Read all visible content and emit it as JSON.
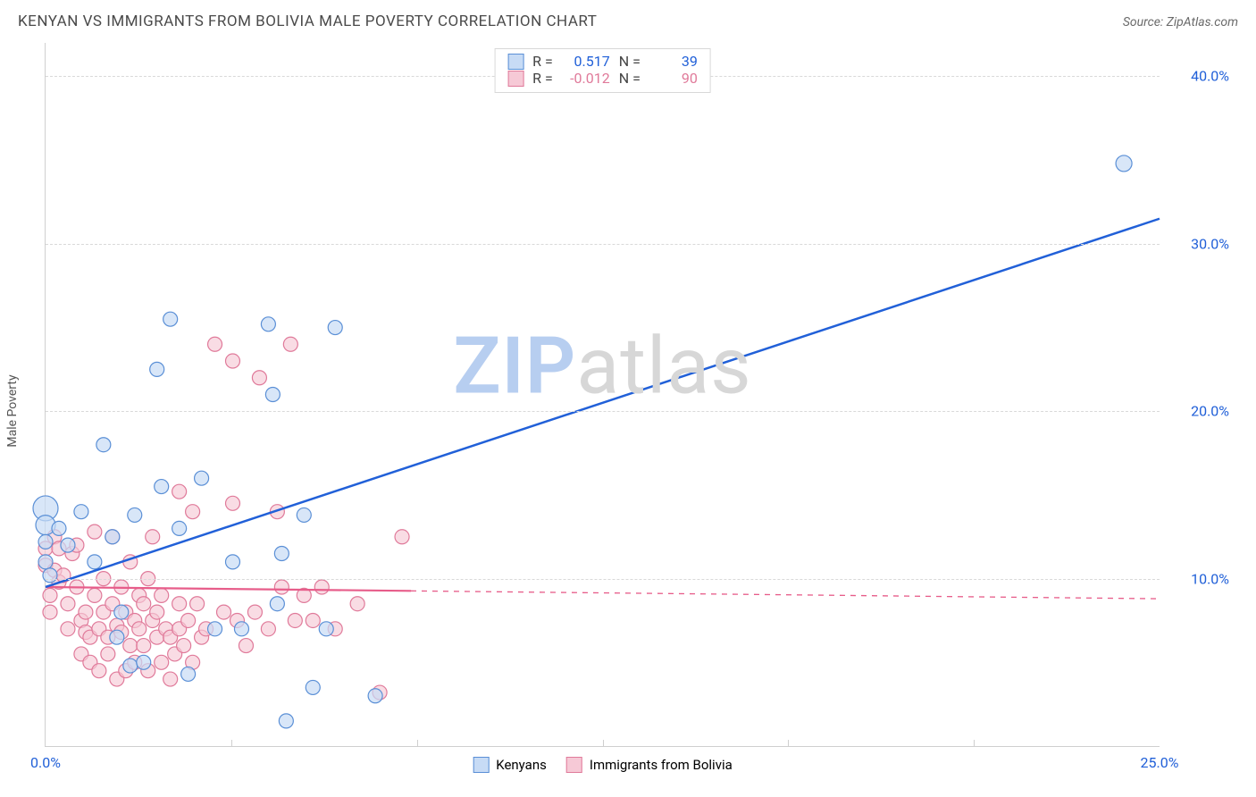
{
  "header": {
    "title": "KENYAN VS IMMIGRANTS FROM BOLIVIA MALE POVERTY CORRELATION CHART",
    "source": "Source: ZipAtlas.com"
  },
  "ylabel": "Male Poverty",
  "chart": {
    "type": "scatter",
    "xlim": [
      0,
      25
    ],
    "ylim": [
      0,
      42
    ],
    "xticks": [
      0,
      25
    ],
    "xtick_minors": [
      4.17,
      8.33,
      12.5,
      16.67,
      20.83
    ],
    "yticks": [
      10,
      20,
      30,
      40
    ],
    "xtick_labels": [
      "0.0%",
      "25.0%"
    ],
    "ytick_labels": [
      "10.0%",
      "20.0%",
      "30.0%",
      "40.0%"
    ],
    "background_color": "#ffffff",
    "grid_color": "#d9d9d9",
    "axis_color": "#cfcfcf",
    "xtick_label_colors": [
      "#2160d8",
      "#2160d8"
    ],
    "ytick_label_colors": [
      "#2160d8",
      "#2160d8",
      "#2160d8",
      "#2160d8"
    ]
  },
  "series": {
    "kenyans": {
      "label": "Kenyans",
      "marker_fill": "#c7dbf5",
      "marker_stroke": "#5a8fd6",
      "marker_fill_opacity": 0.7,
      "line_color": "#2160d8",
      "line_width": 2.5,
      "trend": {
        "x1": 0,
        "y1": 9.5,
        "x2": 25,
        "y2": 31.5,
        "solid_until_x": 25
      },
      "r_value": "0.517",
      "n_value": "39",
      "stat_color": "#2160d8",
      "points": [
        [
          0.0,
          14.2,
          14
        ],
        [
          0.0,
          13.2,
          11
        ],
        [
          0.0,
          12.2,
          8
        ],
        [
          0.0,
          11.0,
          8
        ],
        [
          0.1,
          10.2,
          8
        ],
        [
          0.3,
          13.0,
          8
        ],
        [
          0.5,
          12.0,
          8
        ],
        [
          0.8,
          14.0,
          8
        ],
        [
          1.1,
          11.0,
          8
        ],
        [
          1.3,
          18.0,
          8
        ],
        [
          1.5,
          12.5,
          8
        ],
        [
          1.6,
          6.5,
          8
        ],
        [
          1.7,
          8.0,
          8
        ],
        [
          1.9,
          4.8,
          8
        ],
        [
          2.0,
          13.8,
          8
        ],
        [
          2.2,
          5.0,
          8
        ],
        [
          2.5,
          22.5,
          8
        ],
        [
          2.6,
          15.5,
          8
        ],
        [
          2.8,
          25.5,
          8
        ],
        [
          3.0,
          13.0,
          8
        ],
        [
          3.2,
          4.3,
          8
        ],
        [
          3.5,
          16.0,
          8
        ],
        [
          3.8,
          7.0,
          8
        ],
        [
          4.2,
          11.0,
          8
        ],
        [
          4.4,
          7.0,
          8
        ],
        [
          5.0,
          25.2,
          8
        ],
        [
          5.1,
          21.0,
          8
        ],
        [
          5.2,
          8.5,
          8
        ],
        [
          5.3,
          11.5,
          8
        ],
        [
          5.4,
          1.5,
          8
        ],
        [
          5.8,
          13.8,
          8
        ],
        [
          6.0,
          3.5,
          8
        ],
        [
          6.3,
          7.0,
          8
        ],
        [
          6.5,
          25.0,
          8
        ],
        [
          7.4,
          3.0,
          8
        ],
        [
          24.2,
          34.8,
          9
        ]
      ]
    },
    "bolivia": {
      "label": "Immigrants from Bolivia",
      "marker_fill": "#f6c9d6",
      "marker_stroke": "#e07a9a",
      "marker_fill_opacity": 0.65,
      "line_color": "#e75d8a",
      "line_width": 2.2,
      "trend": {
        "x1": 0,
        "y1": 9.5,
        "x2": 25,
        "y2": 8.8,
        "solid_until_x": 8.2
      },
      "r_value": "-0.012",
      "n_value": "90",
      "stat_color": "#e07a9a",
      "points": [
        [
          0.0,
          10.8,
          8
        ],
        [
          0.0,
          11.8,
          8
        ],
        [
          0.1,
          9.0,
          8
        ],
        [
          0.1,
          8.0,
          8
        ],
        [
          0.2,
          10.5,
          8
        ],
        [
          0.2,
          12.5,
          8
        ],
        [
          0.3,
          11.8,
          8
        ],
        [
          0.3,
          9.8,
          8
        ],
        [
          0.4,
          10.2,
          8
        ],
        [
          0.5,
          8.5,
          8
        ],
        [
          0.5,
          7.0,
          8
        ],
        [
          0.6,
          11.5,
          8
        ],
        [
          0.7,
          12.0,
          8
        ],
        [
          0.7,
          9.5,
          8
        ],
        [
          0.8,
          7.5,
          8
        ],
        [
          0.8,
          5.5,
          8
        ],
        [
          0.9,
          8.0,
          8
        ],
        [
          0.9,
          6.8,
          8
        ],
        [
          1.0,
          6.5,
          8
        ],
        [
          1.0,
          5.0,
          8
        ],
        [
          1.1,
          12.8,
          8
        ],
        [
          1.1,
          9.0,
          8
        ],
        [
          1.2,
          7.0,
          8
        ],
        [
          1.2,
          4.5,
          8
        ],
        [
          1.3,
          10.0,
          8
        ],
        [
          1.3,
          8.0,
          8
        ],
        [
          1.4,
          5.5,
          8
        ],
        [
          1.4,
          6.5,
          8
        ],
        [
          1.5,
          8.5,
          8
        ],
        [
          1.5,
          12.5,
          8
        ],
        [
          1.6,
          7.2,
          8
        ],
        [
          1.6,
          4.0,
          8
        ],
        [
          1.7,
          6.8,
          8
        ],
        [
          1.7,
          9.5,
          8
        ],
        [
          1.8,
          4.5,
          8
        ],
        [
          1.8,
          8.0,
          8
        ],
        [
          1.9,
          11.0,
          8
        ],
        [
          1.9,
          6.0,
          8
        ],
        [
          2.0,
          7.5,
          8
        ],
        [
          2.0,
          5.0,
          8
        ],
        [
          2.1,
          9.0,
          8
        ],
        [
          2.1,
          7.0,
          8
        ],
        [
          2.2,
          8.5,
          8
        ],
        [
          2.2,
          6.0,
          8
        ],
        [
          2.3,
          4.5,
          8
        ],
        [
          2.3,
          10.0,
          8
        ],
        [
          2.4,
          7.5,
          8
        ],
        [
          2.4,
          12.5,
          8
        ],
        [
          2.5,
          6.5,
          8
        ],
        [
          2.5,
          8.0,
          8
        ],
        [
          2.6,
          5.0,
          8
        ],
        [
          2.6,
          9.0,
          8
        ],
        [
          2.7,
          7.0,
          8
        ],
        [
          2.8,
          6.5,
          8
        ],
        [
          2.8,
          4.0,
          8
        ],
        [
          2.9,
          5.5,
          8
        ],
        [
          3.0,
          8.5,
          8
        ],
        [
          3.0,
          7.0,
          8
        ],
        [
          3.0,
          15.2,
          8
        ],
        [
          3.1,
          6.0,
          8
        ],
        [
          3.2,
          7.5,
          8
        ],
        [
          3.3,
          5.0,
          8
        ],
        [
          3.3,
          14.0,
          8
        ],
        [
          3.4,
          8.5,
          8
        ],
        [
          3.5,
          6.5,
          8
        ],
        [
          3.6,
          7.0,
          8
        ],
        [
          3.8,
          24.0,
          8
        ],
        [
          4.0,
          8.0,
          8
        ],
        [
          4.2,
          23.0,
          8
        ],
        [
          4.2,
          14.5,
          8
        ],
        [
          4.3,
          7.5,
          8
        ],
        [
          4.5,
          6.0,
          8
        ],
        [
          4.7,
          8.0,
          8
        ],
        [
          4.8,
          22.0,
          8
        ],
        [
          5.0,
          7.0,
          8
        ],
        [
          5.2,
          14.0,
          8
        ],
        [
          5.3,
          9.5,
          8
        ],
        [
          5.5,
          24.0,
          8
        ],
        [
          5.6,
          7.5,
          8
        ],
        [
          5.8,
          9.0,
          8
        ],
        [
          6.0,
          7.5,
          8
        ],
        [
          6.2,
          9.5,
          8
        ],
        [
          6.5,
          7.0,
          8
        ],
        [
          7.0,
          8.5,
          8
        ],
        [
          7.5,
          3.2,
          8
        ],
        [
          8.0,
          12.5,
          8
        ]
      ]
    }
  },
  "legend_top": {
    "r_label": "R =",
    "n_label": "N ="
  },
  "watermark": {
    "part1": "ZIP",
    "part2": "atlas",
    "color1": "#b7cef0",
    "color2": "#d7d7d7"
  }
}
